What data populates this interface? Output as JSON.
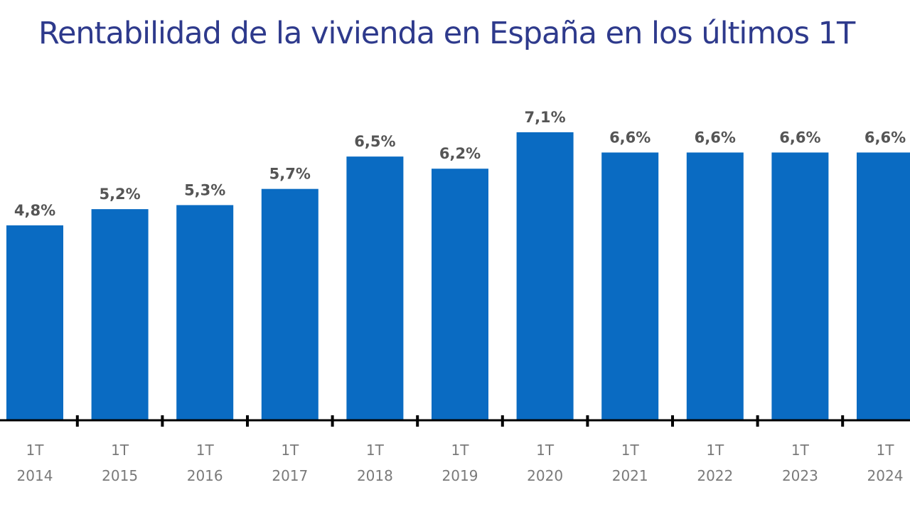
{
  "chart_data": {
    "type": "bar",
    "title": "Rentabilidad de la vivienda en España en los últimos 1T",
    "xlabel": "",
    "ylabel": "",
    "categories": [
      [
        "1T",
        "2014"
      ],
      [
        "1T",
        "2015"
      ],
      [
        "1T",
        "2016"
      ],
      [
        "1T",
        "2017"
      ],
      [
        "1T",
        "2018"
      ],
      [
        "1T",
        "2019"
      ],
      [
        "1T",
        "2020"
      ],
      [
        "1T",
        "2021"
      ],
      [
        "1T",
        "2022"
      ],
      [
        "1T",
        "2023"
      ],
      [
        "1T",
        "2024"
      ]
    ],
    "values": [
      4.8,
      5.2,
      5.3,
      5.7,
      6.5,
      6.2,
      7.1,
      6.6,
      6.6,
      6.6,
      6.6
    ],
    "value_labels": [
      "4,8%",
      "5,2%",
      "5,3%",
      "5,7%",
      "6,5%",
      "6,2%",
      "7,1%",
      "6,6%",
      "6,6%",
      "6,6%",
      "6,6%"
    ],
    "ylim": [
      0,
      7.1
    ],
    "grid": false,
    "legend": "none",
    "colors": {
      "bar": "#0a6bc2",
      "title": "#2e3a8c",
      "axis": "#000000",
      "data_label": "#555555",
      "tick_label": "#7a7a7a"
    }
  }
}
